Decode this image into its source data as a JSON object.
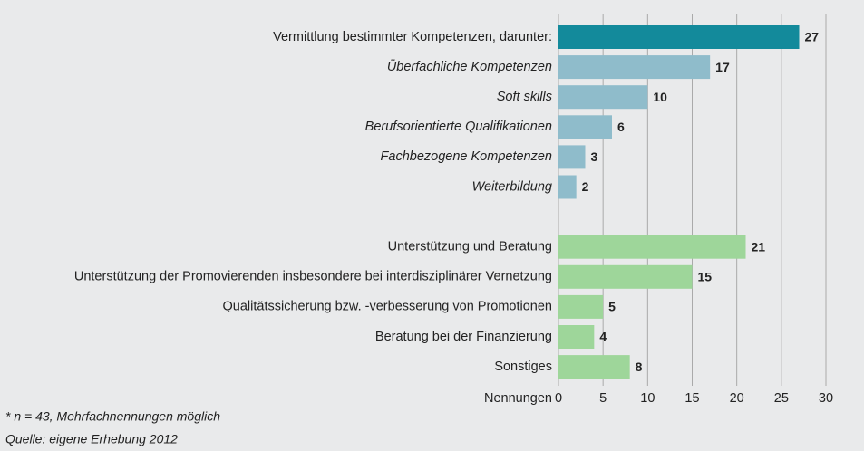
{
  "chart_data": {
    "type": "bar",
    "orientation": "horizontal",
    "categories": [
      "Vermittlung bestimmter Kompetenzen, darunter:",
      "Überfachliche Kompetenzen",
      "Soft skills",
      "Berufsorientierte Qualifikationen",
      "Fachbezogene Kompetenzen",
      "Weiterbildung",
      null,
      "Unterstützung und Beratung",
      "Unterstützung der Promovierenden insbesondere bei interdisziplinärer Vernetzung",
      "Qualitätssicherung bzw. -verbesserung von Promotionen",
      "Beratung bei der Finanzierung",
      "Sonstiges"
    ],
    "values": [
      27,
      17,
      10,
      6,
      3,
      2,
      null,
      21,
      15,
      5,
      4,
      8
    ],
    "colors": [
      "#138a9b",
      "#8fbccb",
      "#8fbccb",
      "#8fbccb",
      "#8fbccb",
      "#8fbccb",
      null,
      "#9ed69a",
      "#9ed69a",
      "#9ed69a",
      "#9ed69a",
      "#9ed69a"
    ],
    "label_styles": [
      "normal",
      "italic",
      "italic",
      "italic",
      "italic",
      "italic",
      null,
      "normal",
      "normal",
      "normal",
      "normal",
      "normal"
    ],
    "xlabel": "Nennungen",
    "xlim": [
      0,
      30
    ],
    "xticks": [
      0,
      5,
      10,
      15,
      20,
      25,
      30
    ],
    "grid": true,
    "notes": [
      "*   n = 43, Mehrfachnennungen möglich",
      "Quelle: eigene Erhebung 2012"
    ]
  }
}
